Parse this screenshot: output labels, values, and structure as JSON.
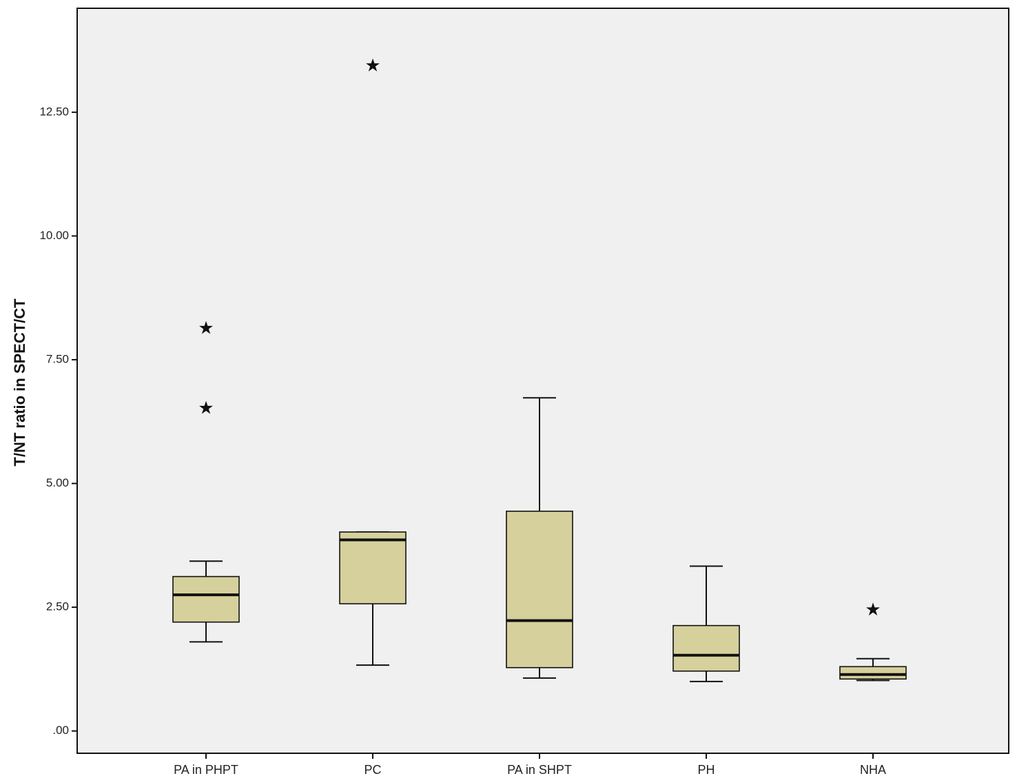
{
  "chart_data": {
    "type": "boxplot",
    "title": "",
    "xlabel": "",
    "ylabel": "T/NT ratio in SPECT/CT",
    "ylim": [
      -0.45,
      14.6
    ],
    "y_ticks": [
      0,
      2.5,
      5,
      7.5,
      10,
      12.5
    ],
    "y_tick_labels": [
      ".00",
      "2.50",
      "5.00",
      "7.50",
      "10.00",
      "12.50"
    ],
    "grid": false,
    "legend": "none",
    "colors": {
      "plot_background": "#f0f0f0",
      "box_fill": "#d6d09c",
      "line": "#111111"
    },
    "categories": [
      "PA in PHPT",
      "PC",
      "PA in SHPT",
      "PH",
      "NHA"
    ],
    "boxes": [
      {
        "category": "PA in PHPT",
        "whisker_low": 1.8,
        "q1": 2.2,
        "median": 2.75,
        "q3": 3.12,
        "whisker_high": 3.43,
        "outliers": [
          8.15,
          6.53
        ]
      },
      {
        "category": "PC",
        "whisker_low": 1.33,
        "q1": 2.57,
        "median": 3.86,
        "q3": 4.02,
        "whisker_high": 4.02,
        "outliers": [
          13.45
        ]
      },
      {
        "category": "PA in SHPT",
        "whisker_low": 1.07,
        "q1": 1.28,
        "median": 2.23,
        "q3": 4.44,
        "whisker_high": 6.73,
        "outliers": []
      },
      {
        "category": "PH",
        "whisker_low": 1.0,
        "q1": 1.21,
        "median": 1.53,
        "q3": 2.13,
        "whisker_high": 3.33,
        "outliers": []
      },
      {
        "category": "NHA",
        "whisker_low": 1.02,
        "q1": 1.05,
        "median": 1.14,
        "q3": 1.3,
        "whisker_high": 1.46,
        "outliers": [
          2.46
        ]
      }
    ]
  }
}
